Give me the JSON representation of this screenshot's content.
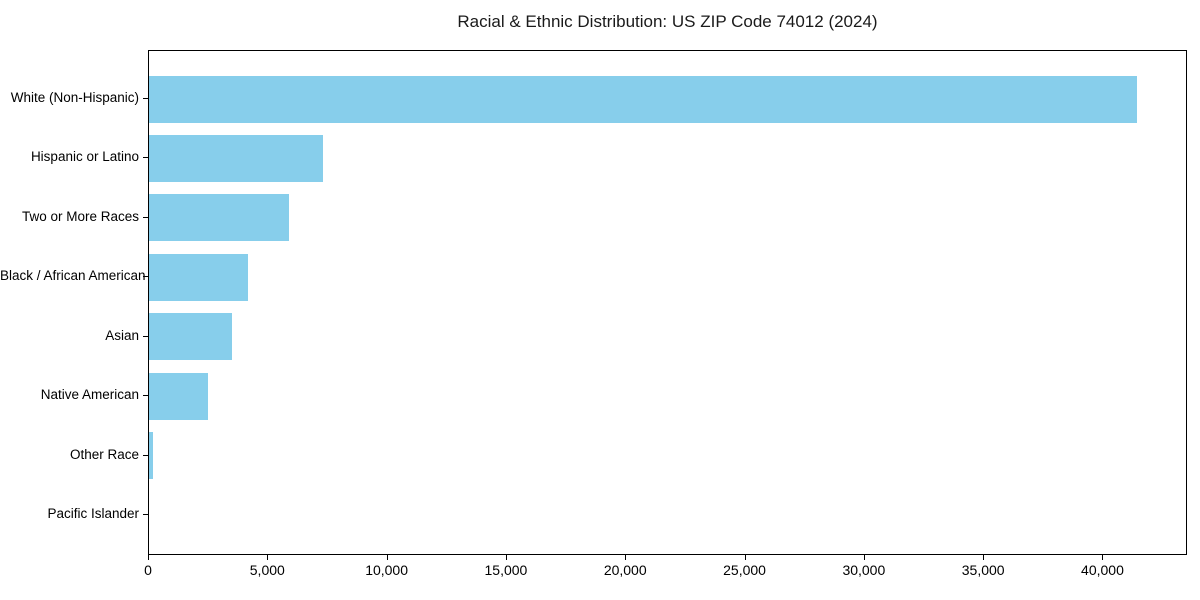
{
  "chart_data": {
    "type": "bar",
    "orientation": "horizontal",
    "title": "Racial & Ethnic Distribution: US ZIP Code 74012 (2024)",
    "categories": [
      "White (Non-Hispanic)",
      "Hispanic or Latino",
      "Two or More Races",
      "Black / African American",
      "Asian",
      "Native American",
      "Other Race",
      "Pacific Islander"
    ],
    "values": [
      41400,
      7300,
      5870,
      4150,
      3480,
      2480,
      180,
      0
    ],
    "xlabel": "",
    "ylabel": "",
    "xlim": [
      0,
      43500
    ],
    "xticks": [
      0,
      5000,
      10000,
      15000,
      20000,
      25000,
      30000,
      35000,
      40000
    ],
    "xtick_labels": [
      "0",
      "5,000",
      "10,000",
      "15,000",
      "20,000",
      "25,000",
      "30,000",
      "35,000",
      "40,000"
    ],
    "grid": false,
    "legend": false,
    "bar_color": "#87CEEB",
    "axis_color": "#000000",
    "background_color": "#FFFFFF"
  }
}
